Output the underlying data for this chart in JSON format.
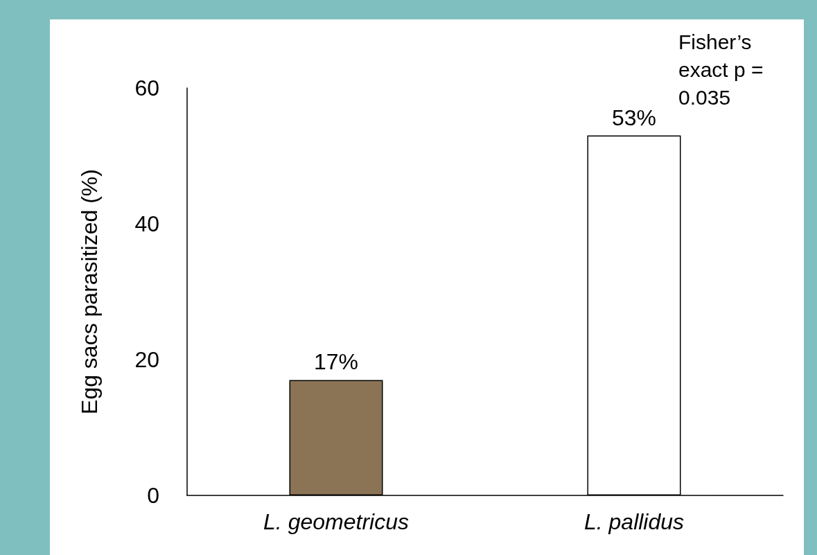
{
  "chart_data": {
    "type": "bar",
    "ylabel": "Egg sacs parasitized (%)",
    "categories": [
      "L. geometricus",
      "L. pallidus"
    ],
    "values": [
      17,
      53
    ],
    "colors": [
      "#8b7355",
      "#ffffff"
    ],
    "value_labels": [
      "17%",
      "53%"
    ],
    "ylim": [
      0,
      60
    ],
    "yticks": [
      0,
      20,
      40,
      60
    ],
    "grid": false,
    "annotations": [
      "Fisher’s exact p = 0.035"
    ]
  }
}
